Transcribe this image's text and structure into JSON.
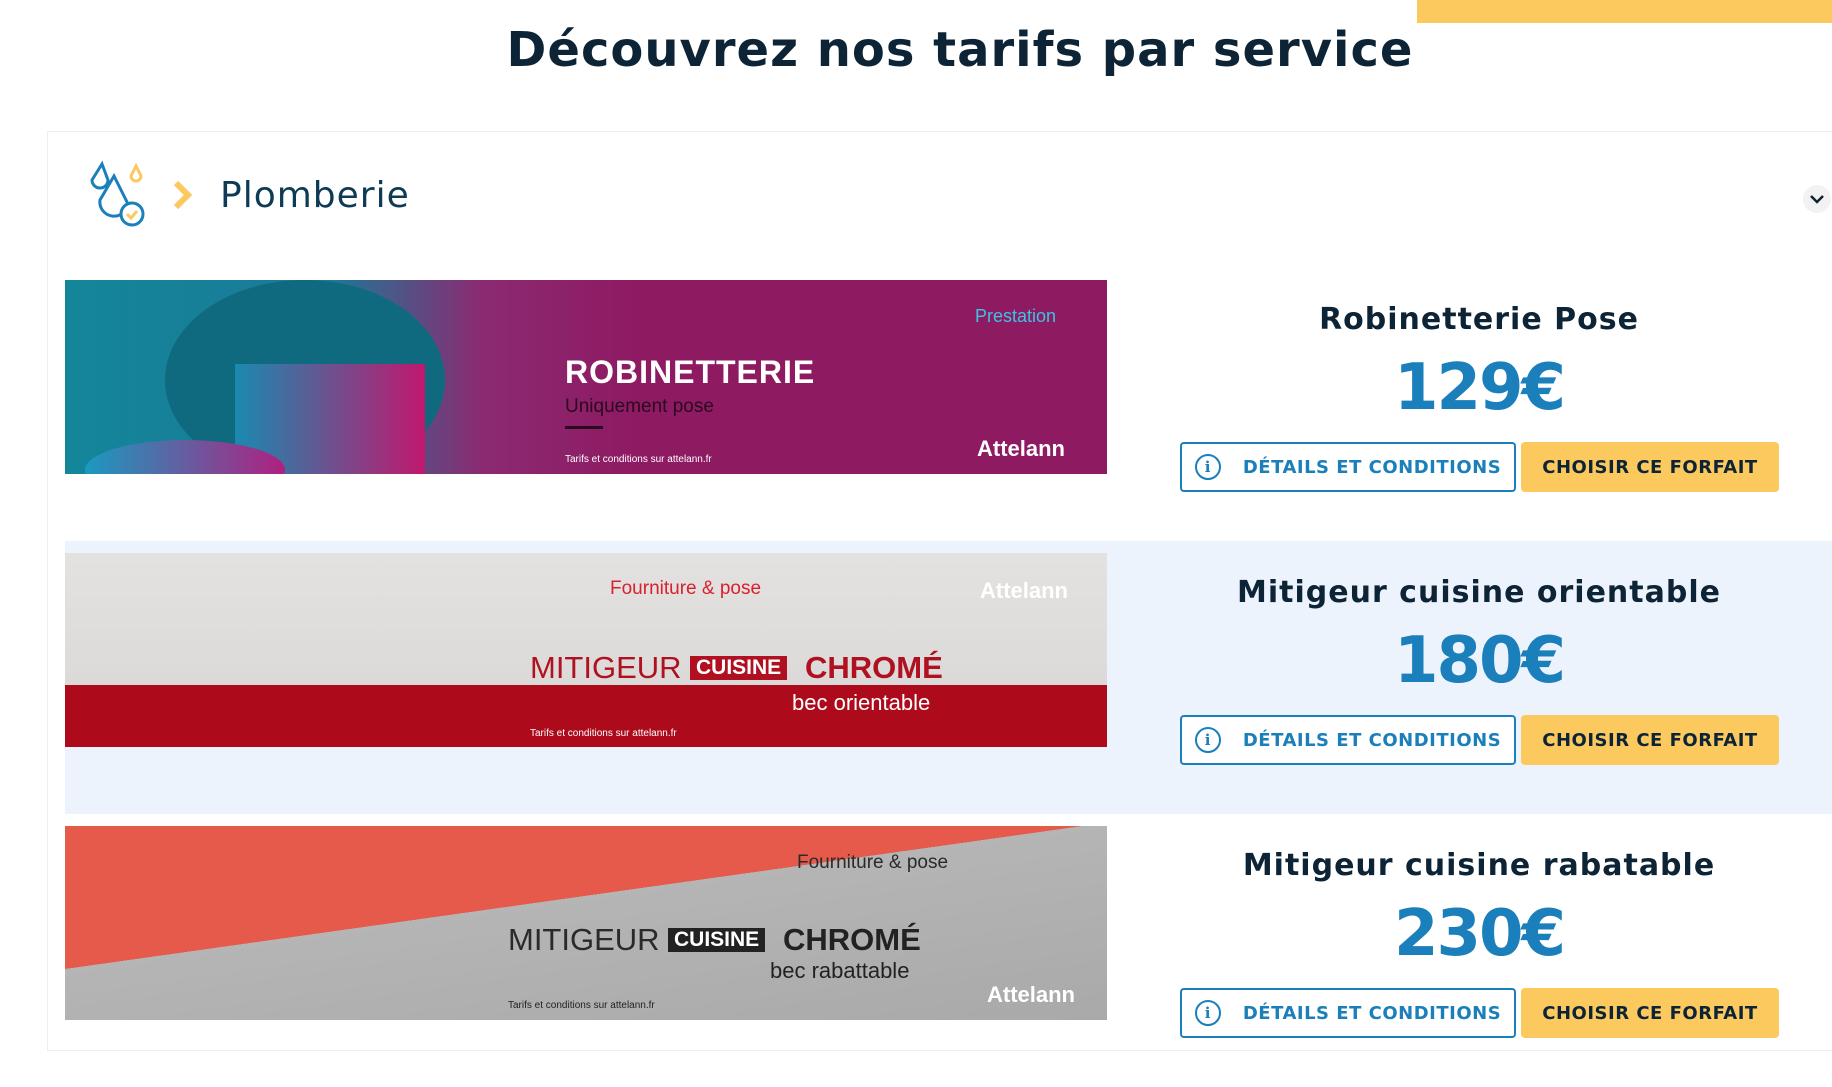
{
  "page": {
    "title": "Découvrez nos tarifs par service"
  },
  "category": {
    "label": "Plomberie",
    "icon": "water-drops-check-icon"
  },
  "colors": {
    "accent": "#fcc95f",
    "primary": "#1a7fba",
    "dark": "#0d2436"
  },
  "offers": [
    {
      "title": "Robinetterie Pose",
      "price": "129€",
      "details_label": "DÉTAILS ET CONDITIONS",
      "choose_label": "CHOISIR CE FORFAIT",
      "banner": {
        "badge": "Prestation",
        "heading": "ROBINETTERIE",
        "sub": "Uniquement pose",
        "legal": "Tarifs et conditions sur attelann.fr",
        "brand": "Attelann"
      }
    },
    {
      "title": "Mitigeur cuisine orientable",
      "price": "180€",
      "details_label": "DÉTAILS ET CONDITIONS",
      "choose_label": "CHOISIR CE FORFAIT",
      "banner": {
        "badge": "Fourniture & pose",
        "h1": "MITIGEUR",
        "h2": "CUISINE",
        "h3": "CHROMÉ",
        "sub": "bec orientable",
        "legal": "Tarifs et conditions sur attelann.fr",
        "brand": "Attelann"
      }
    },
    {
      "title": "Mitigeur cuisine rabatable",
      "price": "230€",
      "details_label": "DÉTAILS ET CONDITIONS",
      "choose_label": "CHOISIR CE FORFAIT",
      "banner": {
        "badge": "Fourniture & pose",
        "h1": "MITIGEUR",
        "h2": "CUISINE",
        "h3": "CHROMÉ",
        "sub": "bec rabattable",
        "legal": "Tarifs et conditions sur attelann.fr",
        "brand": "Attelann"
      }
    }
  ]
}
